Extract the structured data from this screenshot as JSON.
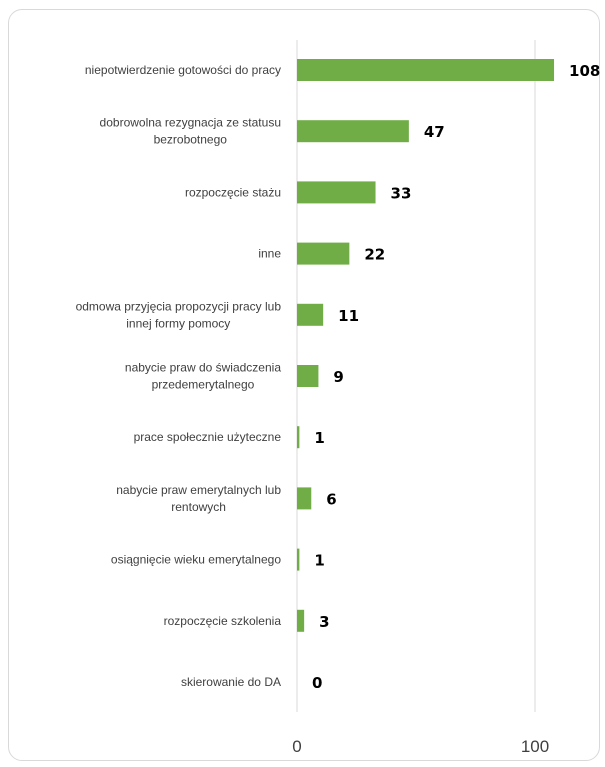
{
  "chart_data": {
    "type": "bar",
    "orientation": "horizontal",
    "categories": [
      [
        "niepotwierdzenie gotowości do pracy"
      ],
      [
        "dobrowolna rezygnacja ze statusu",
        "bezrobotnego"
      ],
      [
        "rozpoczęcie stażu"
      ],
      [
        "inne"
      ],
      [
        "odmowa przyjęcia propozycji pracy lub",
        "innej formy pomocy"
      ],
      [
        "nabycie praw do świadczenia",
        "przedemerytalnego"
      ],
      [
        "prace społecznie użyteczne"
      ],
      [
        "nabycie praw emerytalnych lub",
        "rentowych"
      ],
      [
        "osiągnięcie wieku emerytalnego"
      ],
      [
        "rozpoczęcie szkolenia"
      ],
      [
        "skierowanie do DA"
      ]
    ],
    "values": [
      108,
      47,
      33,
      22,
      11,
      9,
      1,
      6,
      1,
      3,
      0
    ],
    "value_labels": [
      "108",
      "47",
      "33",
      "22",
      "11",
      "9",
      "1",
      "6",
      "1",
      "3",
      "0"
    ],
    "xlim": [
      0,
      100
    ],
    "xticks": [
      "0",
      "100"
    ],
    "grid": "vertical",
    "bar_color": "#70ad47",
    "title": "",
    "xlabel": "",
    "ylabel": ""
  }
}
